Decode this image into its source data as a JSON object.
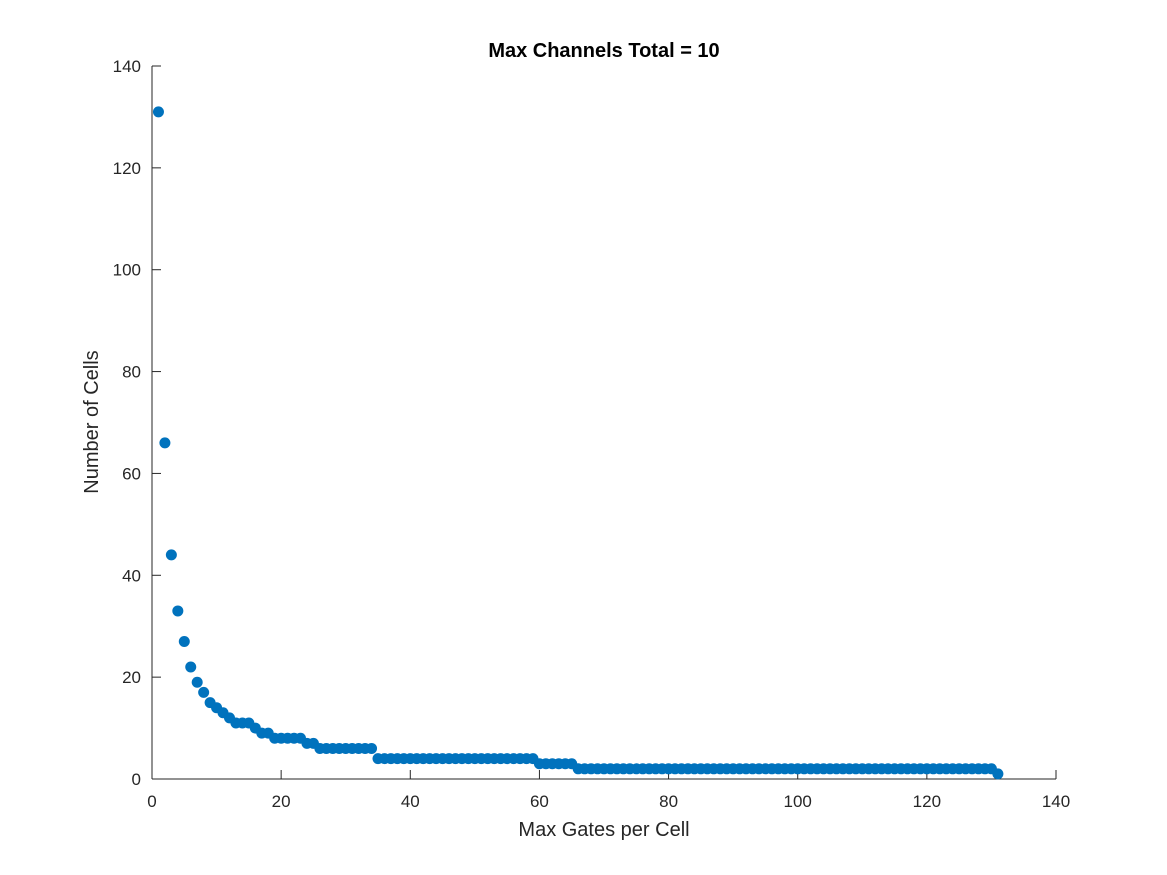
{
  "chart_data": {
    "type": "scatter",
    "title": "Max Channels Total = 10",
    "xlabel": "Max Gates per Cell",
    "ylabel": "Number of Cells",
    "xlim": [
      0,
      140
    ],
    "ylim": [
      0,
      140
    ],
    "xticks": [
      0,
      20,
      40,
      60,
      80,
      100,
      120,
      140
    ],
    "yticks": [
      0,
      20,
      40,
      60,
      80,
      100,
      120,
      140
    ],
    "grid": false,
    "marker_color": "#0072BD",
    "series": [
      {
        "x": [
          1,
          2,
          3,
          4,
          5,
          6,
          7,
          8,
          9,
          10,
          11,
          12,
          13,
          14,
          15,
          16,
          17,
          18,
          19,
          20,
          21,
          22,
          23,
          24,
          25,
          26,
          27,
          28,
          29,
          30,
          31,
          32,
          33,
          34,
          35,
          36,
          37,
          38,
          39,
          40,
          41,
          42,
          43,
          44,
          45,
          46,
          47,
          48,
          49,
          50,
          51,
          52,
          53,
          54,
          55,
          56,
          57,
          58,
          59,
          60,
          61,
          62,
          63,
          64,
          65,
          66,
          67,
          68,
          69,
          70,
          71,
          72,
          73,
          74,
          75,
          76,
          77,
          78,
          79,
          80,
          81,
          82,
          83,
          84,
          85,
          86,
          87,
          88,
          89,
          90,
          91,
          92,
          93,
          94,
          95,
          96,
          97,
          98,
          99,
          100,
          101,
          102,
          103,
          104,
          105,
          106,
          107,
          108,
          109,
          110,
          111,
          112,
          113,
          114,
          115,
          116,
          117,
          118,
          119,
          120,
          121,
          122,
          123,
          124,
          125,
          126,
          127,
          128,
          129,
          130,
          131
        ],
        "y": [
          131,
          66,
          44,
          33,
          27,
          22,
          19,
          17,
          15,
          14,
          13,
          12,
          11,
          11,
          11,
          10,
          9,
          9,
          8,
          8,
          8,
          8,
          8,
          7,
          7,
          6,
          6,
          6,
          6,
          6,
          6,
          6,
          6,
          6,
          4,
          4,
          4,
          4,
          4,
          4,
          4,
          4,
          4,
          4,
          4,
          4,
          4,
          4,
          4,
          4,
          4,
          4,
          4,
          4,
          4,
          4,
          4,
          4,
          4,
          3,
          3,
          3,
          3,
          3,
          3,
          2,
          2,
          2,
          2,
          2,
          2,
          2,
          2,
          2,
          2,
          2,
          2,
          2,
          2,
          2,
          2,
          2,
          2,
          2,
          2,
          2,
          2,
          2,
          2,
          2,
          2,
          2,
          2,
          2,
          2,
          2,
          2,
          2,
          2,
          2,
          2,
          2,
          2,
          2,
          2,
          2,
          2,
          2,
          2,
          2,
          2,
          2,
          2,
          2,
          2,
          2,
          2,
          2,
          2,
          2,
          2,
          2,
          2,
          2,
          2,
          2,
          2,
          2,
          2,
          2,
          1
        ]
      }
    ]
  }
}
